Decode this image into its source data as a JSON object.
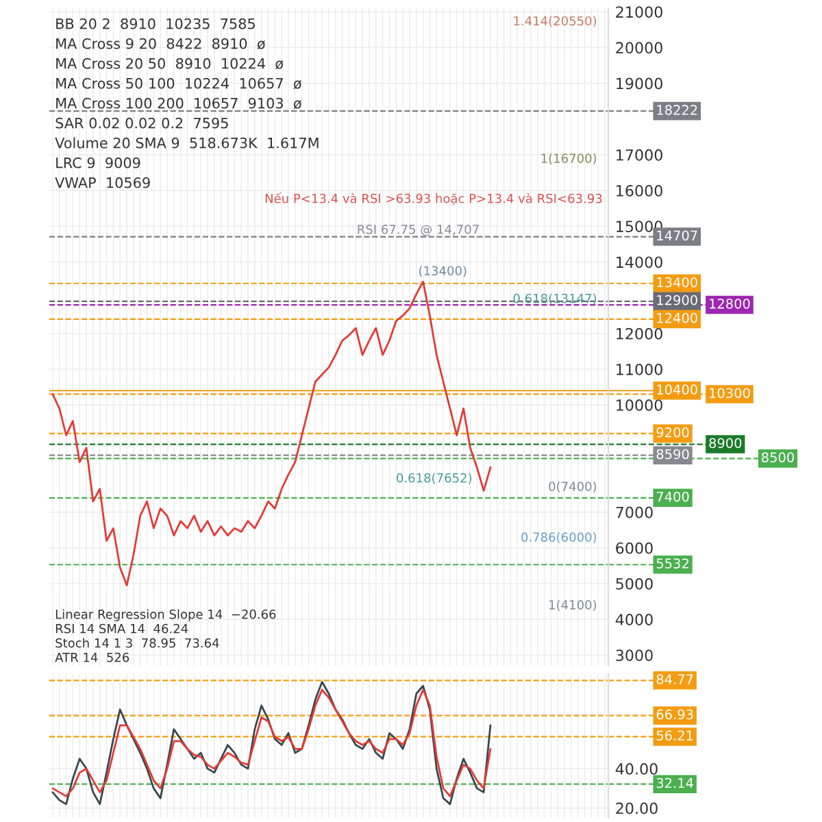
{
  "chart_data": [
    {
      "type": "line",
      "tick_labels": "y",
      "grid": true,
      "legend": false,
      "line_style": "solid",
      "marker": "none",
      "categories": [
        null,
        null,
        null,
        null,
        null,
        null,
        null,
        null,
        null,
        null,
        null,
        null,
        null,
        null,
        null,
        null,
        null,
        null,
        null,
        null,
        null,
        null,
        null,
        null,
        null,
        null,
        null,
        null,
        null,
        null,
        null,
        null,
        null,
        null,
        null,
        null,
        null,
        null,
        null,
        null,
        null,
        null,
        null,
        null,
        null,
        null,
        null,
        null,
        null,
        null,
        null,
        null,
        null,
        null,
        null,
        null,
        null,
        null,
        null,
        null,
        null,
        null,
        null,
        null,
        null,
        null,
        null,
        null,
        null,
        null,
        null,
        null,
        null,
        null,
        null,
        null,
        null,
        null,
        null,
        null,
        null,
        null,
        null
      ],
      "series": [
        {
          "color": "#e53935",
          "values": [
            10300,
            9900,
            9150,
            9550,
            8400,
            8800,
            7300,
            7650,
            6200,
            6550,
            5450,
            4950,
            5800,
            6900,
            7300,
            6550,
            7100,
            6900,
            6350,
            6750,
            6550,
            6900,
            6450,
            6750,
            6350,
            6600,
            6350,
            6550,
            6450,
            6750,
            6550,
            6900,
            7300,
            7100,
            7650,
            8050,
            8400,
            9150,
            9900,
            10650,
            10850,
            11050,
            11400,
            11800,
            11950,
            12150,
            11400,
            11800,
            12150,
            11400,
            11800,
            12350,
            12500,
            12700,
            13100,
            13450,
            12500,
            11400,
            10650,
            9900,
            9150,
            9900,
            8800,
            8250,
            7600,
            8250,
            null,
            null,
            null,
            null,
            null,
            null,
            null,
            null,
            null,
            null,
            null,
            null,
            null,
            null,
            null,
            null,
            null
          ]
        }
      ],
      "ylim": [
        2700,
        21100
      ],
      "yticks": [
        3000,
        4000,
        5000,
        6000,
        7000,
        10000,
        11000,
        12000,
        14000,
        15000,
        16000,
        17000,
        19000,
        20000,
        21000
      ],
      "ref_lines": [
        {
          "axis": "y",
          "value": 18222,
          "label": "18222",
          "color": "#7d7d85",
          "line_style": "dashed"
        },
        {
          "axis": "y",
          "value": 14707,
          "label": "14707",
          "color": "#7d7d85",
          "line_style": "dashed"
        },
        {
          "axis": "y",
          "value": 13400,
          "label": "13400",
          "color": "#f39c12",
          "line_style": "dashed"
        },
        {
          "axis": "y",
          "value": 12900,
          "label": "12900",
          "color": "#6b6b75",
          "line_style": "dashed"
        },
        {
          "axis": "y",
          "value": 12800,
          "label": "12800",
          "color": "#9c27b0",
          "line_style": "dashed"
        },
        {
          "axis": "y",
          "value": 12400,
          "label": "12400",
          "color": "#f39c12",
          "line_style": "dashed"
        },
        {
          "axis": "y",
          "value": 10400,
          "label": "10400",
          "color": "#f39c12",
          "line_style": "solid"
        },
        {
          "axis": "y",
          "value": 10300,
          "label": "10300",
          "color": "#f39c12",
          "line_style": "dashed"
        },
        {
          "axis": "y",
          "value": 9200,
          "label": "9200",
          "color": "#f39c12",
          "line_style": "dashed"
        },
        {
          "axis": "y",
          "value": 8900,
          "label": "8900",
          "color": "#1b7a2a",
          "line_style": "dashed"
        },
        {
          "axis": "y",
          "value": 8590,
          "label": "8590",
          "color": "#88888f",
          "line_style": "dashed"
        },
        {
          "axis": "y",
          "value": 8500,
          "label": "8500",
          "color": "#4caf50",
          "line_style": "dashed"
        },
        {
          "axis": "y",
          "value": 7400,
          "label": "7400",
          "color": "#4caf50",
          "line_style": "dashed"
        },
        {
          "axis": "y",
          "value": 5532,
          "label": "5532",
          "color": "#4caf50",
          "line_style": "dashed"
        }
      ],
      "annotations": [
        "BB 20 2  8910  10235  7585",
        "MA Cross 9 20  8422  8910  ø",
        "MA Cross 20 50  8910  10224  ø",
        "MA Cross 50 100  10224  10657  ø",
        "MA Cross 100 200  10657  9103  ø",
        "SAR 0.02 0.02 0.2  7595",
        "Volume 20 SMA 9  518.673K  1.617M",
        "LRC 9  9009",
        "VWAP  10569",
        "Nếu P<13.4 và RSI >63.93 hoặc P>13.4 và RSI<63.93",
        "1.414(20550)",
        "1(16700)",
        "RSI 67.75 @ 14,707",
        "(13400)",
        "0.618(13147)",
        "0.618(7652)",
        "0(7400)",
        "0.786(6000)",
        "1(4100)"
      ]
    },
    {
      "type": "line",
      "tick_labels": "y",
      "grid": true,
      "legend": false,
      "line_style": "solid",
      "marker": "none",
      "categories": [
        null,
        null,
        null,
        null,
        null,
        null,
        null,
        null,
        null,
        null,
        null,
        null,
        null,
        null,
        null,
        null,
        null,
        null,
        null,
        null,
        null,
        null,
        null,
        null,
        null,
        null,
        null,
        null,
        null,
        null,
        null,
        null,
        null,
        null,
        null,
        null,
        null,
        null,
        null,
        null,
        null,
        null,
        null,
        null,
        null,
        null,
        null,
        null,
        null,
        null,
        null,
        null,
        null,
        null,
        null,
        null,
        null,
        null,
        null,
        null,
        null,
        null,
        null,
        null,
        null,
        null,
        null,
        null,
        null,
        null,
        null,
        null,
        null,
        null,
        null,
        null,
        null,
        null,
        null,
        null,
        null,
        null,
        null
      ],
      "series": [
        {
          "color": "#37474f",
          "values": [
            28,
            24,
            22,
            35,
            45,
            40,
            28,
            22,
            38,
            55,
            70,
            62,
            55,
            48,
            40,
            30,
            25,
            42,
            60,
            55,
            50,
            45,
            48,
            40,
            38,
            45,
            52,
            48,
            42,
            40,
            60,
            72,
            65,
            55,
            52,
            58,
            48,
            50,
            62,
            75,
            84,
            78,
            70,
            65,
            58,
            52,
            50,
            55,
            48,
            45,
            58,
            55,
            50,
            60,
            78,
            82,
            70,
            40,
            25,
            22,
            35,
            45,
            38,
            30,
            28,
            62,
            null,
            null,
            null,
            null,
            null,
            null,
            null,
            null,
            null,
            null,
            null,
            null,
            null,
            null,
            null,
            null,
            null
          ]
        },
        {
          "color": "#e53935",
          "values": [
            30,
            28,
            26,
            30,
            38,
            40,
            34,
            28,
            34,
            48,
            62,
            62,
            56,
            50,
            42,
            34,
            30,
            40,
            54,
            54,
            50,
            47,
            46,
            42,
            40,
            44,
            48,
            46,
            43,
            42,
            54,
            66,
            64,
            56,
            54,
            56,
            50,
            50,
            60,
            72,
            80,
            76,
            70,
            64,
            58,
            54,
            52,
            54,
            50,
            48,
            55,
            55,
            52,
            58,
            72,
            80,
            72,
            46,
            30,
            26,
            34,
            42,
            40,
            34,
            30,
            50,
            null,
            null,
            null,
            null,
            null,
            null,
            null,
            null,
            null,
            null,
            null,
            null,
            null,
            null,
            null,
            null,
            null
          ]
        }
      ],
      "ylim": [
        15,
        88
      ],
      "yticks": [
        {
          "value": 20,
          "label": "20.00"
        },
        {
          "value": 40,
          "label": "40.00"
        }
      ],
      "ref_lines": [
        {
          "axis": "y",
          "value": 84.77,
          "label": "84.77",
          "color": "#f39c12",
          "line_style": "dashed"
        },
        {
          "axis": "y",
          "value": 66.93,
          "label": "66.93",
          "color": "#f39c12",
          "line_style": "dashed"
        },
        {
          "axis": "y",
          "value": 56.21,
          "label": "56.21",
          "color": "#f39c12",
          "line_style": "dashed"
        },
        {
          "axis": "y",
          "value": 32.14,
          "label": "32.14",
          "color": "#4caf50",
          "line_style": "dashed"
        }
      ],
      "annotations": [
        "Linear Regression Slope 14  −20.66",
        "RSI 14 SMA 14  46.24",
        "Stoch 14 1 3  78.95  73.64",
        "ATR 14  526"
      ]
    }
  ]
}
